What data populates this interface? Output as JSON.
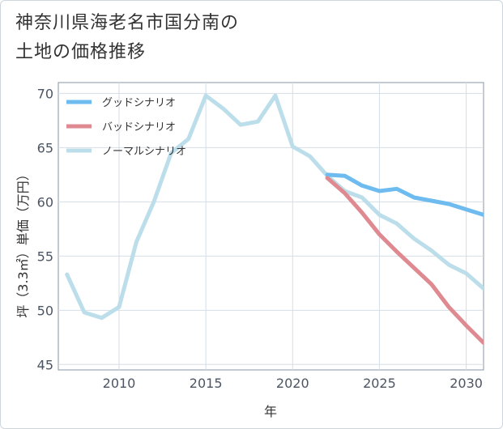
{
  "title_line1": "神奈川県海老名市国分南の",
  "title_line2": "土地の価格推移",
  "chart_data": {
    "type": "line",
    "xlabel": "年",
    "ylabel": "坪（3.3㎡）単価（万円）",
    "xlim": [
      2006.5,
      2031
    ],
    "ylim": [
      44.5,
      71
    ],
    "xticks": [
      2010,
      2015,
      2020,
      2025,
      2030
    ],
    "yticks": [
      45,
      50,
      55,
      60,
      65,
      70
    ],
    "grid": true,
    "legend_position": "top-left",
    "series": [
      {
        "name": "グッドシナリオ",
        "color": "#6dbbef",
        "x": [
          2022,
          2023,
          2024,
          2025,
          2026,
          2027,
          2028,
          2029,
          2030,
          2031
        ],
        "y": [
          62.5,
          62.4,
          61.5,
          61.0,
          61.2,
          60.4,
          60.1,
          59.8,
          59.3,
          58.8
        ]
      },
      {
        "name": "バッドシナリオ",
        "color": "#de8a90",
        "x": [
          2022,
          2023,
          2024,
          2025,
          2026,
          2027,
          2028,
          2029,
          2030,
          2031
        ],
        "y": [
          62.2,
          60.8,
          59.0,
          57.0,
          55.4,
          53.9,
          52.4,
          50.3,
          48.6,
          47.0
        ]
      },
      {
        "name": "ノーマルシナリオ",
        "color": "#bcdeea",
        "x": [
          2007,
          2008,
          2009,
          2010,
          2011,
          2012,
          2013,
          2014,
          2015,
          2016,
          2017,
          2018,
          2019,
          2020,
          2021,
          2022,
          2023,
          2024,
          2025,
          2026,
          2027,
          2028,
          2029,
          2030,
          2031
        ],
        "y": [
          53.3,
          49.8,
          49.3,
          50.3,
          56.3,
          60.0,
          64.5,
          65.8,
          69.8,
          68.6,
          67.1,
          67.4,
          69.8,
          65.1,
          64.2,
          62.4,
          61.0,
          60.4,
          58.8,
          58.0,
          56.6,
          55.5,
          54.2,
          53.4,
          52.0
        ]
      }
    ]
  }
}
